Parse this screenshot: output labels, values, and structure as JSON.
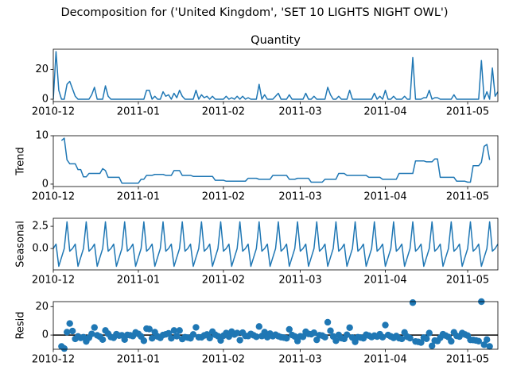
{
  "chart_data": {
    "title": "Decomposition for ('United Kingdom', 'SET 10 LIGHTS NIGHT OWL')",
    "x": [
      0,
      1,
      2,
      3,
      4,
      5,
      6,
      7,
      8,
      9,
      10,
      11,
      12,
      13,
      14,
      15,
      16,
      17,
      18,
      19,
      20,
      21,
      22,
      23,
      24,
      25,
      26,
      27,
      28,
      29,
      30,
      31,
      32,
      33,
      34,
      35,
      36,
      37,
      38,
      39,
      40,
      41,
      42,
      43,
      44,
      45,
      46,
      47,
      48,
      49,
      50,
      51,
      52,
      53,
      54,
      55,
      56,
      57,
      58,
      59,
      60,
      61,
      62,
      63,
      64,
      65,
      66,
      67,
      68,
      69,
      70,
      71,
      72,
      73,
      74,
      75,
      76,
      77,
      78,
      79,
      80,
      81,
      82,
      83,
      84,
      85,
      86,
      87,
      88,
      89,
      90,
      91,
      92,
      93,
      94,
      95,
      96,
      97,
      98,
      99,
      100,
      101,
      102,
      103,
      104,
      105,
      106,
      107,
      108,
      109,
      110,
      111,
      112,
      113,
      114,
      115,
      116,
      117,
      118,
      119,
      120,
      121,
      122,
      123,
      124,
      125,
      126,
      127,
      128,
      129,
      130,
      131,
      132,
      133,
      134,
      135,
      136,
      137,
      138,
      139,
      140,
      141,
      142,
      143,
      144,
      145,
      146,
      147,
      148,
      149,
      150,
      151,
      152,
      153,
      154,
      155,
      156,
      157,
      158,
      159,
      160,
      161,
      162
    ],
    "xlim": [
      0,
      162
    ],
    "xticks": [
      {
        "value": 0,
        "label": "2010-12"
      },
      {
        "value": 31,
        "label": "2011-01"
      },
      {
        "value": 62,
        "label": "2011-02"
      },
      {
        "value": 90,
        "label": "2011-03"
      },
      {
        "value": 121,
        "label": "2011-04"
      },
      {
        "value": 151,
        "label": "2011-05"
      }
    ],
    "panels": [
      {
        "type": "line",
        "title": "Quantity",
        "color": "#1f77b4",
        "ylim": [
          -1.6,
          33.6
        ],
        "yticks": [
          0,
          20
        ],
        "values": [
          0,
          32,
          6,
          0,
          0,
          10,
          12,
          7,
          2,
          0,
          0,
          0,
          0,
          0,
          3,
          8,
          0,
          0,
          0,
          9,
          2,
          0,
          0,
          0,
          0,
          0,
          0,
          0,
          0,
          0,
          0,
          0,
          0,
          0,
          6,
          6,
          0,
          2,
          0,
          0,
          5,
          2,
          3,
          0,
          4,
          1,
          6,
          2,
          0,
          0,
          0,
          0,
          6,
          0,
          3,
          1,
          2,
          0,
          2,
          0,
          0,
          0,
          0,
          2,
          0,
          1,
          0,
          2,
          0,
          2,
          0,
          1,
          0,
          0,
          0,
          10,
          0,
          3,
          0,
          0,
          0,
          2,
          4,
          0,
          0,
          0,
          3,
          0,
          0,
          0,
          0,
          0,
          4,
          0,
          0,
          2,
          0,
          0,
          0,
          0,
          8,
          3,
          0,
          0,
          2,
          0,
          0,
          0,
          6,
          0,
          0,
          0,
          0,
          0,
          0,
          0,
          0,
          4,
          0,
          2,
          0,
          6,
          0,
          0,
          2,
          0,
          0,
          0,
          2,
          0,
          0,
          28,
          0,
          0,
          0,
          1,
          1,
          6,
          0,
          1,
          1,
          0,
          0,
          0,
          0,
          0,
          3,
          0,
          0,
          0,
          0,
          0,
          0,
          0,
          0,
          0,
          26,
          0,
          5,
          0,
          21,
          2,
          5
        ]
      },
      {
        "type": "line",
        "ylabel": "Trend",
        "color": "#1f77b4",
        "ylim": [
          -0.5,
          10
        ],
        "yticks": [
          0,
          10
        ],
        "values": [
          null,
          null,
          null,
          9,
          9.5,
          5,
          4.2,
          4.2,
          4.2,
          3,
          3,
          1.5,
          1.5,
          2.2,
          2.2,
          2.2,
          2.2,
          2.2,
          3.2,
          2.8,
          1.4,
          1.4,
          1.4,
          1.4,
          1.4,
          0.2,
          0.2,
          0.2,
          0.2,
          0.2,
          0.2,
          0.2,
          1,
          1,
          1.8,
          1.8,
          1.8,
          2,
          2,
          2,
          2,
          1.8,
          1.8,
          1.8,
          2.8,
          2.8,
          2.8,
          1.8,
          1.8,
          1.8,
          1.8,
          1.6,
          1.6,
          1.6,
          1.6,
          1.6,
          1.6,
          1.6,
          1.6,
          0.8,
          0.8,
          0.8,
          0.8,
          0.6,
          0.6,
          0.6,
          0.6,
          0.6,
          0.6,
          0.6,
          0.6,
          1.2,
          1.2,
          1.2,
          1.2,
          1,
          1,
          1,
          1,
          1,
          1.8,
          1.8,
          1.8,
          1.8,
          1.8,
          1.8,
          1,
          1,
          1,
          1.2,
          1.2,
          1.2,
          1.2,
          1.2,
          0.4,
          0.4,
          0.4,
          0.4,
          0.4,
          1,
          1,
          1,
          1,
          1,
          2.2,
          2.2,
          2.2,
          1.8,
          1.8,
          1.8,
          1.8,
          1.8,
          1.8,
          1.8,
          1.8,
          1.4,
          1.4,
          1.4,
          1.4,
          1.4,
          1,
          1,
          1,
          1,
          1,
          1,
          2.2,
          2.2,
          2.2,
          2.2,
          2.2,
          2.2,
          4.8,
          4.8,
          4.8,
          4.8,
          4.6,
          4.6,
          4.6,
          5.2,
          5.2,
          1.4,
          1.4,
          1.4,
          1.4,
          1.4,
          1.4,
          0.6,
          0.6,
          0.6,
          0.6,
          0.4,
          0.4,
          3.8,
          3.8,
          3.8,
          4.5,
          7.8,
          8.2,
          5,
          null,
          null,
          null
        ]
      },
      {
        "type": "line",
        "ylabel": "Seasonal",
        "color": "#1f77b4",
        "ylim": [
          -2.4,
          3.4
        ],
        "yticks": [
          {
            "value": 0,
            "label": "0.0"
          },
          {
            "value": 2.5,
            "label": "2.5"
          }
        ],
        "values": [
          0,
          0.5,
          -2,
          -1,
          0,
          3,
          -0.3,
          0,
          0.5,
          -2,
          -1,
          0,
          3,
          -0.3,
          0,
          0.5,
          -2,
          -1,
          0,
          3,
          -0.3,
          0,
          0.5,
          -2,
          -1,
          0,
          3,
          -0.3,
          0,
          0.5,
          -2,
          -1,
          0,
          3,
          -0.3,
          0,
          0.5,
          -2,
          -1,
          0,
          3,
          -0.3,
          0,
          0.5,
          -2,
          -1,
          0,
          3,
          -0.3,
          0,
          0.5,
          -2,
          -1,
          0,
          3,
          -0.3,
          0,
          0.5,
          -2,
          -1,
          0,
          3,
          -0.3,
          0,
          0.5,
          -2,
          -1,
          0,
          3,
          -0.3,
          0,
          0.5,
          -2,
          -1,
          0,
          3,
          -0.3,
          0,
          0.5,
          -2,
          -1,
          0,
          3,
          -0.3,
          0,
          0.5,
          -2,
          -1,
          0,
          3,
          -0.3,
          0,
          0.5,
          -2,
          -1,
          0,
          3,
          -0.3,
          0,
          0.5,
          -2,
          -1,
          0,
          3,
          -0.3,
          0,
          0.5,
          -2,
          -1,
          0,
          3,
          -0.3,
          0,
          0.5,
          -2,
          -1,
          0,
          3,
          -0.3,
          0,
          0.5,
          -2,
          -1,
          0,
          3,
          -0.3,
          0,
          0.5,
          -2,
          -1,
          0,
          3,
          -0.3,
          0,
          0.5,
          -2,
          -1,
          0,
          3,
          -0.3,
          0,
          0.5,
          -2,
          -1,
          0,
          3,
          -0.3,
          0,
          0.5,
          -2,
          -1,
          0,
          3,
          -0.3,
          0,
          0.5,
          -2,
          -1,
          0,
          3,
          -0.3,
          0,
          0.5
        ]
      },
      {
        "type": "scatter",
        "ylabel": "Resid",
        "color": "#1f77b4",
        "ylim": [
          -10,
          23.5
        ],
        "yticks": [
          0,
          20
        ],
        "zero_line": true,
        "values": [
          null,
          null,
          null,
          -8,
          -9.5,
          2,
          8.1,
          2.8,
          -2.7,
          -1,
          -2,
          -1.5,
          -4.5,
          -1.9,
          0.8,
          5.3,
          -0.2,
          -1.2,
          -3.2,
          3.2,
          0.9,
          -1.4,
          -1.9,
          0.6,
          -0.4,
          -0.2,
          -3.2,
          0.1,
          -0.2,
          -0.7,
          1.8,
          0.8,
          -1,
          -4,
          4.5,
          4.2,
          -2.3,
          2,
          -1,
          -2,
          0,
          0.5,
          1.2,
          -2.3,
          3.2,
          -0.8,
          3.2,
          -2.8,
          -1.5,
          -1.8,
          -2.3,
          0.4,
          5.4,
          -1.6,
          -1.6,
          -0.3,
          0.4,
          -2.1,
          2.4,
          0.2,
          -0.8,
          -3.8,
          -0.5,
          1.4,
          -1.1,
          2.4,
          0.4,
          1.4,
          -3.6,
          1.7,
          -0.6,
          -0.7,
          0.8,
          -0.2,
          -1.2,
          6,
          -0.7,
          2,
          -1.5,
          1,
          -0.8,
          0.2,
          -0.8,
          -1.5,
          -1.8,
          -2.3,
          4,
          0,
          -1,
          -4.2,
          -0.9,
          -1.2,
          2.3,
          0.8,
          0.6,
          1.6,
          -3.4,
          -0.1,
          -0.4,
          -1.5,
          9,
          3,
          -1,
          -4,
          0.1,
          -2.2,
          -2.7,
          0.2,
          5.2,
          -1.8,
          -4.8,
          -1.5,
          -1.8,
          -2.3,
          0.2,
          -0.4,
          -1.4,
          -0.4,
          -1.1,
          0.6,
          -1.5,
          7,
          0,
          -1,
          -2,
          -0.7,
          -2.2,
          -2.7,
          1.8,
          -1.2,
          -2.2,
          22.8,
          -4.5,
          -4.8,
          -5.3,
          -1.8,
          -2.6,
          1.4,
          -7.6,
          -3.9,
          -4.2,
          -1.9,
          0.6,
          -0.4,
          -1.4,
          -4.4,
          1.9,
          -0.6,
          -1.1,
          1.4,
          0.4,
          -0.4,
          -3.4,
          -3.5,
          -3.8,
          -4.3,
          23.5,
          -6.8,
          -3.2,
          -8,
          null,
          null,
          null
        ]
      }
    ]
  }
}
